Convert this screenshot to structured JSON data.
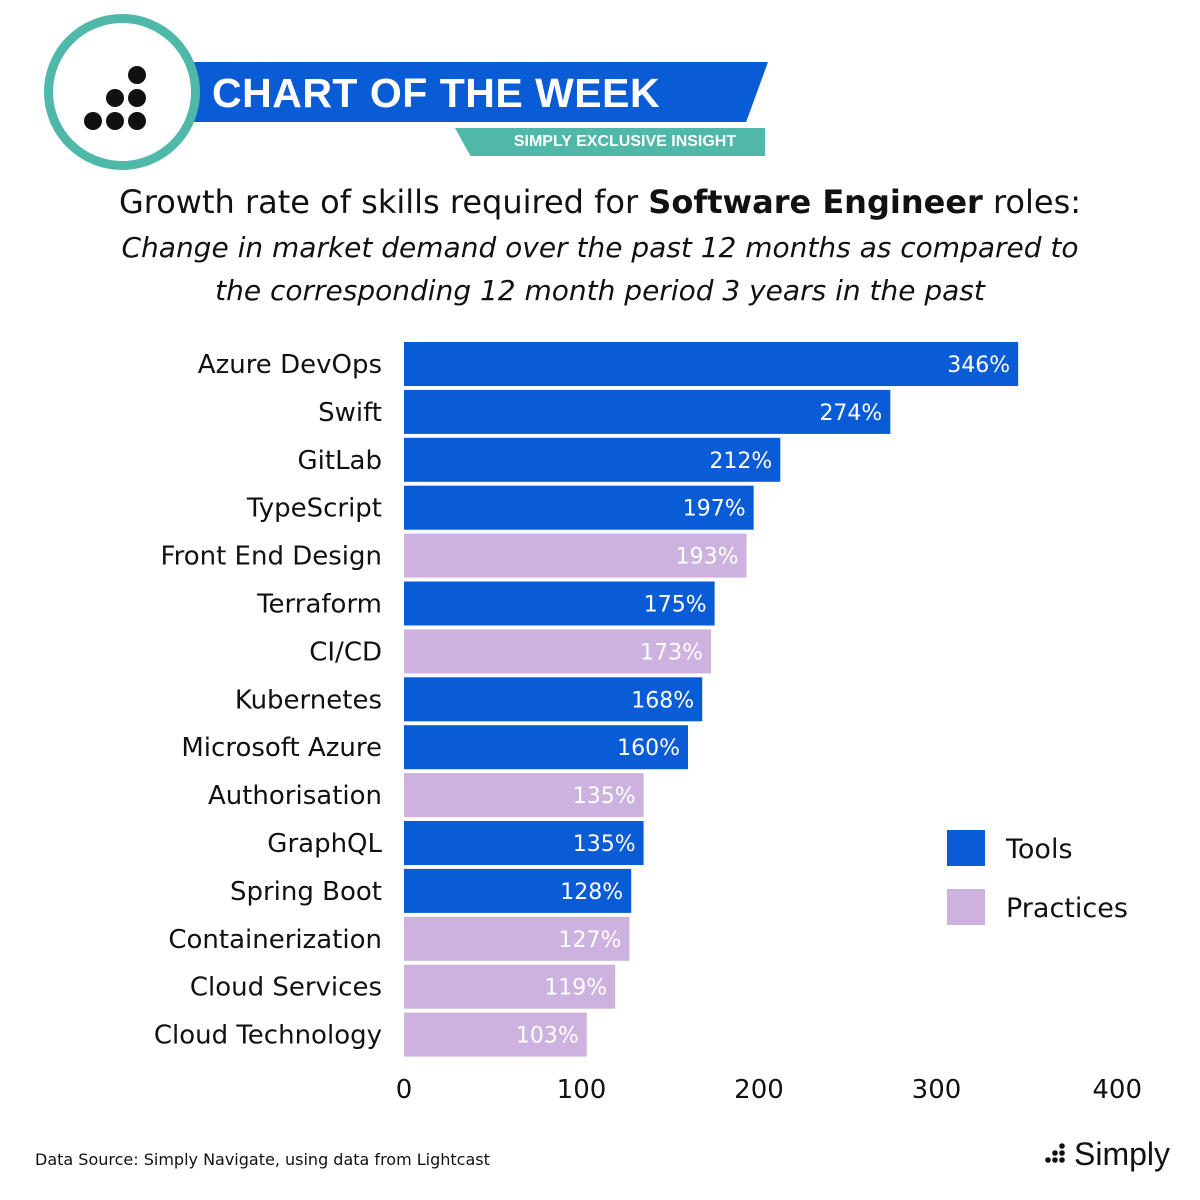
{
  "header": {
    "banner_title": "CHART OF THE WEEK",
    "banner_subtitle": "SIMPLY EXCLUSIVE INSIGHT",
    "logo_icon": "dots-triangle-icon",
    "colors": {
      "blue": "#0a5bd6",
      "teal": "#4fb8a8"
    }
  },
  "chart_data": {
    "type": "bar",
    "orientation": "horizontal",
    "title_prefix": "Growth rate of skills required for ",
    "title_bold": "Software Engineer",
    "title_suffix": " roles:",
    "subtitle": "Change in market demand over the past 12 months as compared to the corresponding 12 month period 3 years in the past",
    "categories": [
      "Azure DevOps",
      "Swift",
      "GitLab",
      "TypeScript",
      "Front End Design",
      "Terraform",
      "CI/CD",
      "Kubernetes",
      "Microsoft Azure",
      "Authorisation",
      "GraphQL",
      "Spring Boot",
      "Containerization",
      "Cloud Services",
      "Cloud Technology"
    ],
    "values": [
      346,
      274,
      212,
      197,
      193,
      175,
      173,
      168,
      160,
      135,
      135,
      128,
      127,
      119,
      103
    ],
    "data_labels": [
      "346%",
      "274%",
      "212%",
      "197%",
      "193%",
      "175%",
      "173%",
      "168%",
      "160%",
      "135%",
      "135%",
      "128%",
      "127%",
      "119%",
      "103%"
    ],
    "groups": [
      "Tools",
      "Tools",
      "Tools",
      "Tools",
      "Practices",
      "Tools",
      "Practices",
      "Tools",
      "Tools",
      "Practices",
      "Tools",
      "Tools",
      "Practices",
      "Practices",
      "Practices"
    ],
    "legend": [
      {
        "name": "Tools",
        "color": "#0a5bd6"
      },
      {
        "name": "Practices",
        "color": "#cdb2e0"
      }
    ],
    "xlim": [
      0,
      400
    ],
    "xticks": [
      "0",
      "100",
      "200",
      "300",
      "400"
    ],
    "legend_position": "right",
    "grid": false
  },
  "footer": {
    "source": "Data Source: Simply Navigate, using data from Lightcast",
    "brand": "Simply",
    "brand_icon": "dots-triangle-icon"
  }
}
